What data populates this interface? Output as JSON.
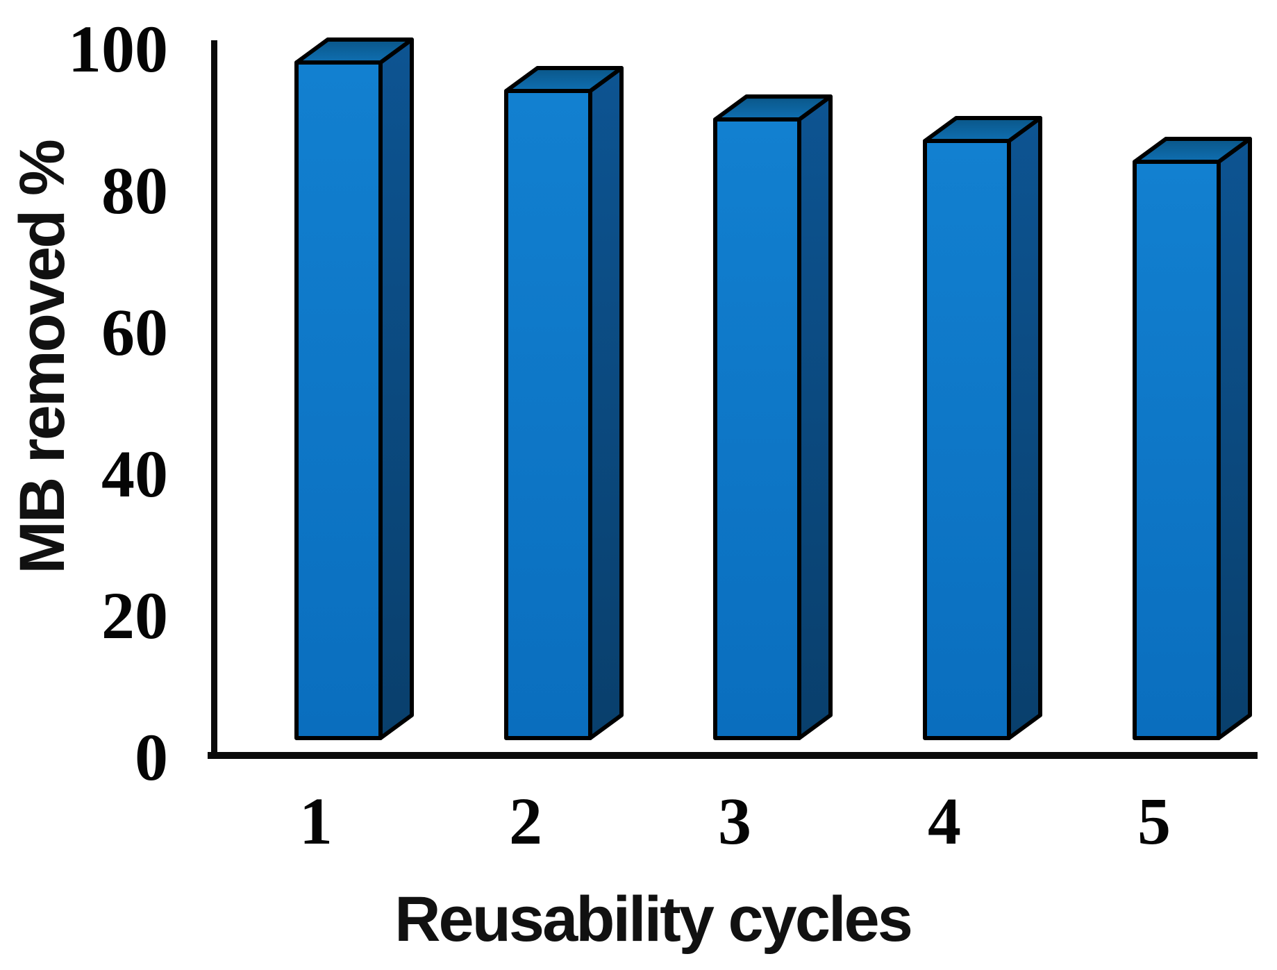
{
  "chart_data": {
    "type": "bar",
    "style": "3d-box-bars",
    "title": "",
    "categories": [
      "1",
      "2",
      "3",
      "4",
      "5"
    ],
    "values": [
      98,
      94,
      90,
      87,
      84
    ],
    "series": [
      {
        "name": "MB removed %",
        "values": [
          98,
          94,
          90,
          87,
          84
        ]
      }
    ],
    "xlabel": "Reusability cycles",
    "ylabel": "MB removed %",
    "ylim": [
      0,
      100
    ],
    "ytick_step": 20,
    "yticks": [
      "0",
      "20",
      "40",
      "60",
      "80",
      "100"
    ],
    "grid": false,
    "legend": false,
    "colors": {
      "bar_front": "#0b73c4",
      "bar_front_light": "#1280d0",
      "bar_top_front": "#0f6fb2",
      "bar_top_back": "#0a5688",
      "bar_side_top": "#0d5492",
      "bar_side_bottom": "#093f6c",
      "outline": "#000000",
      "axis": "#0a0a0a",
      "background": "#ffffff",
      "text": "#050505"
    }
  }
}
